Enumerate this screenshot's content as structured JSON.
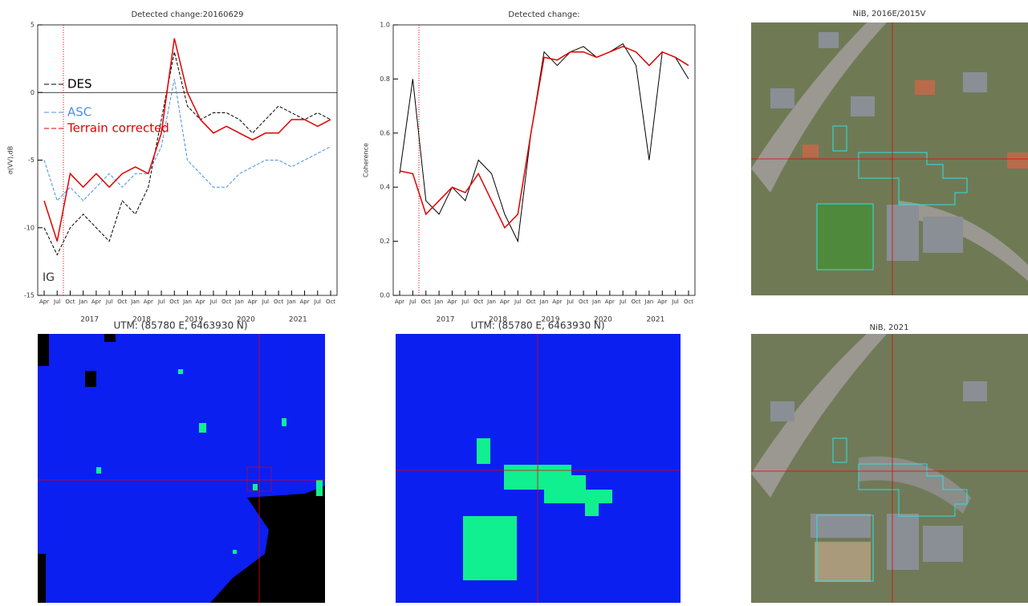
{
  "chart_data": [
    {
      "type": "line",
      "title": "Detected change:20160629",
      "y_label": "σ(VV),dB",
      "categories": [
        "Apr",
        "Jul",
        "Oct",
        "Jan",
        "Apr",
        "Jul",
        "Oct",
        "Jan",
        "Apr",
        "Jul",
        "Oct",
        "Jan",
        "Apr",
        "Jul",
        "Oct",
        "Jan",
        "Apr",
        "Jul",
        "Oct",
        "Jan",
        "Apr",
        "Jul",
        "Oct"
      ],
      "year_labels": [
        "2017",
        "2018",
        "2019",
        "2020",
        "2021"
      ],
      "ylim": [
        -15,
        5
      ],
      "yticks": [
        -15,
        -10,
        -5,
        0,
        5
      ],
      "annotation": "IG",
      "series": [
        {
          "name": "DES",
          "color": "#000000",
          "linestyle": "dashed",
          "values": [
            -10,
            -12,
            -10,
            -9,
            -10,
            -11,
            -8,
            -9,
            -7,
            -2,
            3,
            -1,
            -2,
            -1.5,
            -1.5,
            -2,
            -3,
            -2,
            -1,
            -1.5,
            -2,
            -1.5,
            -2
          ]
        },
        {
          "name": "ASC",
          "color": "#4a90e2",
          "linestyle": "dashed",
          "values": [
            -5,
            -8,
            -7,
            -8,
            -7,
            -6,
            -7,
            -6,
            -6,
            -4,
            1,
            -5,
            -6,
            -7,
            -7,
            -6,
            -5.5,
            -5,
            -5,
            -5.5,
            -5,
            -4.5,
            -4
          ]
        },
        {
          "name": "Terrain corrected",
          "color": "#e00000",
          "linestyle": "solid",
          "values": [
            -8,
            -11,
            -6,
            -7,
            -6,
            -7,
            -6,
            -5.5,
            -6,
            -3,
            4,
            0,
            -2,
            -3,
            -2.5,
            -3,
            -3.5,
            -3,
            -3,
            -2,
            -2,
            -2.5,
            -2
          ]
        }
      ]
    },
    {
      "type": "line",
      "title": "Detected change:",
      "y_label": "Coherence",
      "categories": [
        "Apr",
        "Jul",
        "Oct",
        "Jan",
        "Apr",
        "Jul",
        "Oct",
        "Jan",
        "Apr",
        "Jul",
        "Oct",
        "Jan",
        "Apr",
        "Jul",
        "Oct",
        "Jan",
        "Apr",
        "Jul",
        "Oct",
        "Jan",
        "Apr",
        "Jul",
        "Oct"
      ],
      "year_labels": [
        "2017",
        "2018",
        "2019",
        "2020",
        "2021"
      ],
      "ylim": [
        0,
        1
      ],
      "yticks": [
        {
          "value": 0,
          "label": "0.0"
        },
        0.2,
        0.4,
        0.6,
        0.8,
        {
          "value": 1,
          "label": "1.0"
        }
      ],
      "series": [
        {
          "color": "#000000",
          "linestyle": "solid",
          "values": [
            0.45,
            0.8,
            0.35,
            0.3,
            0.4,
            0.35,
            0.5,
            0.45,
            0.3,
            0.2,
            0.6,
            0.9,
            0.85,
            0.9,
            0.92,
            0.88,
            0.9,
            0.93,
            0.85,
            0.5,
            0.9,
            0.88,
            0.8
          ]
        },
        {
          "color": "#e00000",
          "linestyle": "solid",
          "values": [
            0.46,
            0.45,
            0.3,
            0.35,
            0.4,
            0.38,
            0.45,
            0.35,
            0.25,
            0.3,
            0.6,
            0.88,
            0.87,
            0.9,
            0.9,
            0.88,
            0.9,
            0.92,
            0.9,
            0.85,
            0.9,
            0.88,
            0.85
          ]
        }
      ]
    }
  ],
  "images": [
    {
      "title": "NiB, 2016E/2015V"
    },
    {
      "title": "NiB, 2021"
    }
  ],
  "maps": [
    {
      "caption": "UTM: (85780 E, 6463930 N)"
    },
    {
      "caption": "UTM: (85780 E, 6463930 N)"
    }
  ]
}
